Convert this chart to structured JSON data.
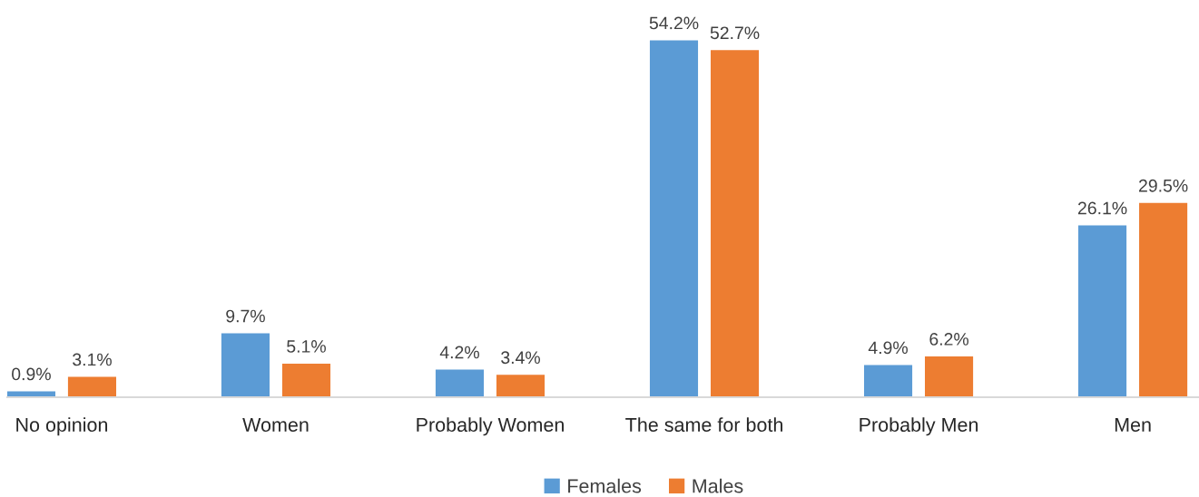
{
  "chart_data": {
    "type": "bar",
    "categories": [
      "No opinion",
      "Women",
      "Probably Women",
      "The same for both",
      "Probably Men",
      "Men"
    ],
    "series": [
      {
        "name": "Females",
        "color": "#5b9bd5",
        "values": [
          0.9,
          9.7,
          4.2,
          54.2,
          4.9,
          26.1
        ],
        "value_labels": [
          "0.9%",
          "9.7%",
          "4.2%",
          "54.2%",
          "4.9%",
          "26.1%"
        ]
      },
      {
        "name": "Males",
        "color": "#ed7d31",
        "values": [
          3.1,
          5.1,
          3.4,
          52.7,
          6.2,
          29.5
        ],
        "value_labels": [
          "3.1%",
          "5.1%",
          "3.4%",
          "52.7%",
          "6.2%",
          "29.5%"
        ]
      }
    ],
    "tick_labels": "x",
    "legend": "bottom"
  }
}
